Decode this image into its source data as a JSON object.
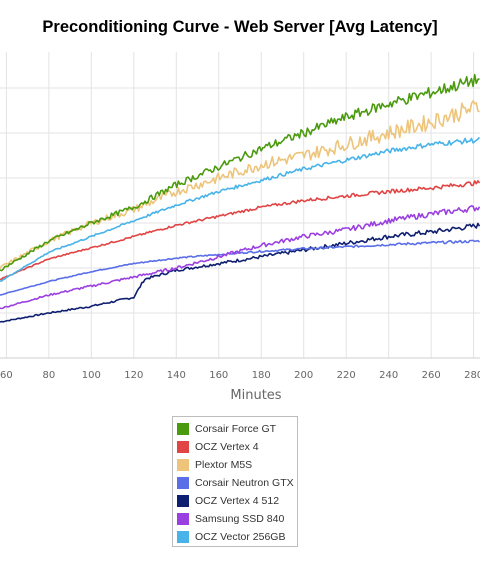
{
  "chart_data": {
    "type": "line",
    "title": "Preconditioning Curve - Web Server [Avg Latency]",
    "xlabel": "Minutes",
    "ylabel": "",
    "x_ticks": [
      60,
      80,
      100,
      120,
      140,
      160,
      180,
      200,
      220,
      240,
      260,
      280
    ],
    "xlim": [
      57,
      283
    ],
    "ylim": [
      0,
      6.8
    ],
    "y_gridlines": [
      1,
      2,
      3,
      4,
      5,
      6
    ],
    "grid": true,
    "legend_position": "bottom",
    "series": [
      {
        "name": "Corsair Force GT",
        "color": "#4a9a0e",
        "x": [
          57,
          80,
          100,
          120,
          140,
          160,
          180,
          200,
          220,
          240,
          260,
          283
        ],
        "y": [
          1.95,
          2.6,
          3.0,
          3.35,
          3.85,
          4.25,
          4.65,
          5.0,
          5.35,
          5.65,
          5.9,
          6.2
        ]
      },
      {
        "name": "OCZ Vertex 4",
        "color": "#e04444",
        "x": [
          57,
          80,
          100,
          120,
          140,
          160,
          180,
          200,
          220,
          240,
          260,
          283
        ],
        "y": [
          1.75,
          2.2,
          2.45,
          2.7,
          2.95,
          3.15,
          3.35,
          3.5,
          3.6,
          3.7,
          3.78,
          3.9
        ]
      },
      {
        "name": "Plextor M5S",
        "color": "#edc47a",
        "x": [
          57,
          80,
          100,
          120,
          140,
          160,
          180,
          200,
          220,
          240,
          260,
          283
        ],
        "y": [
          2.0,
          2.6,
          3.0,
          3.3,
          3.7,
          4.0,
          4.3,
          4.5,
          4.75,
          5.0,
          5.25,
          5.6
        ]
      },
      {
        "name": "Corsair Neutron GTX",
        "color": "#5a6ee8",
        "x": [
          57,
          80,
          100,
          120,
          140,
          160,
          180,
          200,
          220,
          240,
          260,
          283
        ],
        "y": [
          1.4,
          1.7,
          1.92,
          2.1,
          2.22,
          2.3,
          2.37,
          2.43,
          2.47,
          2.52,
          2.56,
          2.6
        ]
      },
      {
        "name": "OCZ Vertex 4 512",
        "color": "#0f1f70",
        "x": [
          57,
          80,
          100,
          120,
          125,
          140,
          160,
          180,
          200,
          220,
          240,
          260,
          283
        ],
        "y": [
          0.8,
          1.0,
          1.15,
          1.35,
          1.75,
          1.95,
          2.1,
          2.25,
          2.4,
          2.55,
          2.7,
          2.8,
          2.95
        ]
      },
      {
        "name": "Samsung SSD 840",
        "color": "#9b40e0",
        "x": [
          57,
          80,
          100,
          120,
          140,
          160,
          180,
          200,
          220,
          240,
          260,
          283
        ],
        "y": [
          1.1,
          1.4,
          1.6,
          1.8,
          2.0,
          2.25,
          2.5,
          2.7,
          2.85,
          3.05,
          3.2,
          3.35
        ]
      },
      {
        "name": "OCZ Vector 256GB",
        "color": "#47b3e8",
        "x": [
          57,
          80,
          100,
          120,
          140,
          160,
          180,
          200,
          220,
          240,
          260,
          283
        ],
        "y": [
          1.7,
          2.35,
          2.7,
          3.05,
          3.4,
          3.7,
          3.95,
          4.2,
          4.4,
          4.6,
          4.75,
          4.85
        ]
      }
    ]
  }
}
